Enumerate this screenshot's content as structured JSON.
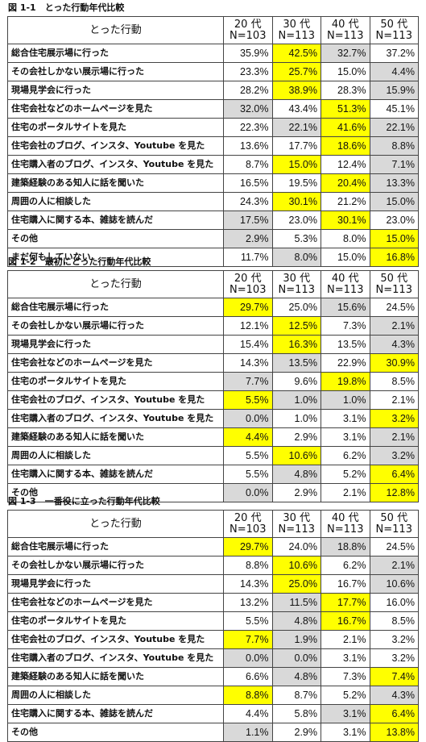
{
  "colors": {
    "highlight_max": "#ffff00",
    "highlight_min": "#d9d9d9"
  },
  "tables": [
    {
      "title": "図 1-1　とった行動年代比較",
      "header_label": "とった行動",
      "columns": [
        {
          "age": "20 代",
          "n": "N=103"
        },
        {
          "age": "30 代",
          "n": "N=113"
        },
        {
          "age": "40 代",
          "n": "N=113"
        },
        {
          "age": "50 代",
          "n": "N=113"
        }
      ],
      "rows": [
        {
          "label": "総合住宅展示場に行った",
          "values": [
            "35.9%",
            "42.5%",
            "32.7%",
            "37.2%"
          ],
          "hl": [
            "",
            "y",
            "g",
            ""
          ]
        },
        {
          "label": "その会社しかない展示場に行った",
          "values": [
            "23.3%",
            "25.7%",
            "15.0%",
            "4.4%"
          ],
          "hl": [
            "",
            "y",
            "",
            "g"
          ]
        },
        {
          "label": "現場見学会に行った",
          "values": [
            "28.2%",
            "38.9%",
            "28.3%",
            "15.9%"
          ],
          "hl": [
            "",
            "y",
            "",
            "g"
          ]
        },
        {
          "label": "住宅会社などのホームページを見た",
          "values": [
            "32.0%",
            "43.4%",
            "51.3%",
            "45.1%"
          ],
          "hl": [
            "g",
            "",
            "y",
            ""
          ]
        },
        {
          "label": "住宅のポータルサイトを見た",
          "values": [
            "22.3%",
            "22.1%",
            "41.6%",
            "22.1%"
          ],
          "hl": [
            "",
            "g",
            "y",
            "g"
          ]
        },
        {
          "label": "住宅会社のブログ、インスタ、Youtube を見た",
          "values": [
            "13.6%",
            "17.7%",
            "18.6%",
            "8.8%"
          ],
          "hl": [
            "",
            "",
            "y",
            "g"
          ]
        },
        {
          "label": "住宅購入者のブログ、インスタ、Youtube を見た",
          "values": [
            "8.7%",
            "15.0%",
            "12.4%",
            "7.1%"
          ],
          "hl": [
            "",
            "y",
            "",
            "g"
          ]
        },
        {
          "label": "建築経験のある知人に話を聞いた",
          "values": [
            "16.5%",
            "19.5%",
            "20.4%",
            "13.3%"
          ],
          "hl": [
            "",
            "",
            "y",
            "g"
          ]
        },
        {
          "label": "周囲の人に相談した",
          "values": [
            "24.3%",
            "30.1%",
            "21.2%",
            "15.0%"
          ],
          "hl": [
            "",
            "y",
            "",
            "g"
          ]
        },
        {
          "label": "住宅購入に関する本、雑誌を読んだ",
          "values": [
            "17.5%",
            "23.0%",
            "30.1%",
            "23.0%"
          ],
          "hl": [
            "g",
            "",
            "y",
            ""
          ]
        },
        {
          "label": "その他",
          "values": [
            "2.9%",
            "5.3%",
            "8.0%",
            "15.0%"
          ],
          "hl": [
            "g",
            "",
            "",
            "y"
          ]
        },
        {
          "label": "まだ何もしていない",
          "values": [
            "11.7%",
            "8.0%",
            "15.0%",
            "16.8%"
          ],
          "hl": [
            "",
            "g",
            "",
            "y"
          ]
        }
      ]
    },
    {
      "title": "図 1-2　最初にとった行動年代比較",
      "header_label": "とった行動",
      "columns": [
        {
          "age": "20 代",
          "n": "N=103"
        },
        {
          "age": "30 代",
          "n": "N=113"
        },
        {
          "age": "40 代",
          "n": "N=113"
        },
        {
          "age": "50 代",
          "n": "N=113"
        }
      ],
      "rows": [
        {
          "label": "総合住宅展示場に行った",
          "values": [
            "29.7%",
            "25.0%",
            "15.6%",
            "24.5%"
          ],
          "hl": [
            "y",
            "",
            "g",
            ""
          ]
        },
        {
          "label": "その会社しかない展示場に行った",
          "values": [
            "12.1%",
            "12.5%",
            "7.3%",
            "2.1%"
          ],
          "hl": [
            "",
            "y",
            "",
            "g"
          ]
        },
        {
          "label": "現場見学会に行った",
          "values": [
            "15.4%",
            "16.3%",
            "13.5%",
            "4.3%"
          ],
          "hl": [
            "",
            "y",
            "",
            "g"
          ]
        },
        {
          "label": "住宅会社などのホームページを見た",
          "values": [
            "14.3%",
            "13.5%",
            "22.9%",
            "30.9%"
          ],
          "hl": [
            "",
            "g",
            "",
            "y"
          ]
        },
        {
          "label": "住宅のポータルサイトを見た",
          "values": [
            "7.7%",
            "9.6%",
            "19.8%",
            "8.5%"
          ],
          "hl": [
            "g",
            "",
            "y",
            ""
          ]
        },
        {
          "label": "住宅会社のブログ、インスタ、Youtube を見た",
          "values": [
            "5.5%",
            "1.0%",
            "1.0%",
            "2.1%"
          ],
          "hl": [
            "y",
            "g",
            "g",
            ""
          ]
        },
        {
          "label": "住宅購入者のブログ、インスタ、Youtube を見た",
          "values": [
            "0.0%",
            "1.0%",
            "3.1%",
            "3.2%"
          ],
          "hl": [
            "g",
            "",
            "",
            "y"
          ]
        },
        {
          "label": "建築経験のある知人に話を聞いた",
          "values": [
            "4.4%",
            "2.9%",
            "3.1%",
            "2.1%"
          ],
          "hl": [
            "y",
            "",
            "",
            "g"
          ]
        },
        {
          "label": "周囲の人に相談した",
          "values": [
            "5.5%",
            "10.6%",
            "6.2%",
            "3.2%"
          ],
          "hl": [
            "",
            "y",
            "",
            "g"
          ]
        },
        {
          "label": "住宅購入に関する本、雑誌を読んだ",
          "values": [
            "5.5%",
            "4.8%",
            "5.2%",
            "6.4%"
          ],
          "hl": [
            "",
            "g",
            "",
            "y"
          ]
        },
        {
          "label": "その他",
          "values": [
            "0.0%",
            "2.9%",
            "2.1%",
            "12.8%"
          ],
          "hl": [
            "g",
            "",
            "",
            "y"
          ]
        }
      ]
    },
    {
      "title": "図 1-3　一番役に立った行動年代比較",
      "header_label": "とった行動",
      "columns": [
        {
          "age": "20 代",
          "n": "N=103"
        },
        {
          "age": "30 代",
          "n": "N=113"
        },
        {
          "age": "40 代",
          "n": "N=113"
        },
        {
          "age": "50 代",
          "n": "N=113"
        }
      ],
      "rows": [
        {
          "label": "総合住宅展示場に行った",
          "values": [
            "29.7%",
            "24.0%",
            "18.8%",
            "24.5%"
          ],
          "hl": [
            "y",
            "",
            "g",
            ""
          ]
        },
        {
          "label": "その会社しかない展示場に行った",
          "values": [
            "8.8%",
            "10.6%",
            "6.2%",
            "2.1%"
          ],
          "hl": [
            "",
            "y",
            "",
            "g"
          ]
        },
        {
          "label": "現場見学会に行った",
          "values": [
            "14.3%",
            "25.0%",
            "16.7%",
            "10.6%"
          ],
          "hl": [
            "",
            "y",
            "",
            "g"
          ]
        },
        {
          "label": "住宅会社などのホームページを見た",
          "values": [
            "13.2%",
            "11.5%",
            "17.7%",
            "16.0%"
          ],
          "hl": [
            "",
            "g",
            "y",
            ""
          ]
        },
        {
          "label": "住宅のポータルサイトを見た",
          "values": [
            "5.5%",
            "4.8%",
            "16.7%",
            "8.5%"
          ],
          "hl": [
            "",
            "g",
            "y",
            ""
          ]
        },
        {
          "label": "住宅会社のブログ、インスタ、Youtube を見た",
          "values": [
            "7.7%",
            "1.9%",
            "2.1%",
            "3.2%"
          ],
          "hl": [
            "y",
            "g",
            "",
            ""
          ]
        },
        {
          "label": "住宅購入者のブログ、インスタ、Youtube を見た",
          "values": [
            "0.0%",
            "0.0%",
            "3.1%",
            "3.2%"
          ],
          "hl": [
            "g",
            "g",
            "",
            ""
          ]
        },
        {
          "label": "建築経験のある知人に話を聞いた",
          "values": [
            "6.6%",
            "4.8%",
            "7.3%",
            "7.4%"
          ],
          "hl": [
            "",
            "g",
            "",
            "y"
          ]
        },
        {
          "label": "周囲の人に相談した",
          "values": [
            "8.8%",
            "8.7%",
            "5.2%",
            "4.3%"
          ],
          "hl": [
            "y",
            "",
            "",
            "g"
          ]
        },
        {
          "label": "住宅購入に関する本、雑誌を読んだ",
          "values": [
            "4.4%",
            "5.8%",
            "3.1%",
            "6.4%"
          ],
          "hl": [
            "",
            "",
            "g",
            "y"
          ]
        },
        {
          "label": "その他",
          "values": [
            "1.1%",
            "2.9%",
            "3.1%",
            "13.8%"
          ],
          "hl": [
            "g",
            "",
            "",
            "y"
          ]
        }
      ]
    }
  ]
}
